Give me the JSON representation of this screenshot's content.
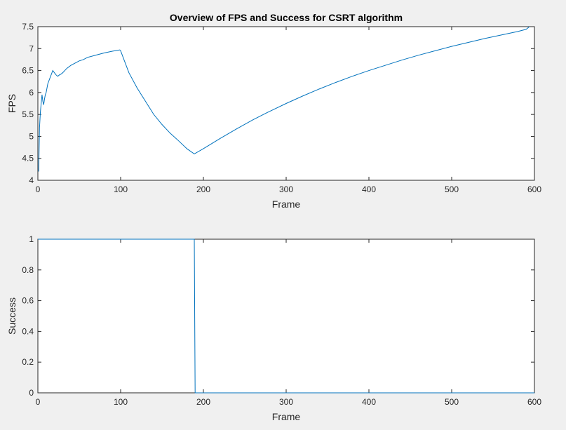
{
  "chart_data": [
    {
      "type": "line",
      "title": "Overview of FPS and Success for CSRT algorithm",
      "xlabel": "Frame",
      "ylabel": "FPS",
      "xlim": [
        0,
        600
      ],
      "ylim": [
        4,
        7.5
      ],
      "xticks": [
        0,
        100,
        200,
        300,
        400,
        500,
        600
      ],
      "yticks": [
        4,
        4.5,
        5,
        5.5,
        6,
        6.5,
        7,
        7.5
      ],
      "ytick_labels": [
        "4",
        "4.5",
        "5",
        "5.5",
        "6",
        "6.5",
        "7",
        "7.5"
      ],
      "grid": false,
      "line_color": "#0072bd",
      "series": [
        {
          "x": [
            1,
            2,
            3,
            4,
            5,
            6,
            7,
            8,
            9,
            10,
            12,
            14,
            16,
            18,
            20,
            22,
            24,
            26,
            28,
            30,
            35,
            40,
            45,
            50,
            55,
            60,
            70,
            80,
            90,
            99,
            100,
            105,
            110,
            120,
            130,
            140,
            150,
            160,
            170,
            180,
            189,
            200,
            220,
            240,
            260,
            280,
            300,
            320,
            340,
            360,
            380,
            400,
            420,
            440,
            460,
            480,
            500,
            520,
            540,
            560,
            580,
            590,
            594
          ],
          "y": [
            4.2,
            5.2,
            5.55,
            5.75,
            5.95,
            5.8,
            5.72,
            5.85,
            5.95,
            6.0,
            6.2,
            6.3,
            6.4,
            6.5,
            6.45,
            6.4,
            6.37,
            6.4,
            6.42,
            6.45,
            6.55,
            6.62,
            6.67,
            6.72,
            6.75,
            6.8,
            6.85,
            6.9,
            6.94,
            6.97,
            6.95,
            6.7,
            6.45,
            6.1,
            5.8,
            5.5,
            5.27,
            5.07,
            4.9,
            4.72,
            4.6,
            4.72,
            4.95,
            5.17,
            5.38,
            5.57,
            5.75,
            5.92,
            6.08,
            6.23,
            6.37,
            6.5,
            6.62,
            6.74,
            6.85,
            6.95,
            7.05,
            7.14,
            7.23,
            7.31,
            7.39,
            7.44,
            7.5
          ]
        }
      ]
    },
    {
      "type": "line",
      "title": "",
      "xlabel": "Frame",
      "ylabel": "Success",
      "xlim": [
        0,
        600
      ],
      "ylim": [
        0,
        1
      ],
      "xticks": [
        0,
        100,
        200,
        300,
        400,
        500,
        600
      ],
      "yticks": [
        0,
        0.2,
        0.4,
        0.6,
        0.8,
        1
      ],
      "ytick_labels": [
        "0",
        "0.2",
        "0.4",
        "0.6",
        "0.8",
        "1"
      ],
      "grid": false,
      "line_color": "#0072bd",
      "series": [
        {
          "x": [
            0,
            189,
            190,
            600
          ],
          "y": [
            1,
            1,
            0,
            0
          ]
        }
      ]
    }
  ]
}
